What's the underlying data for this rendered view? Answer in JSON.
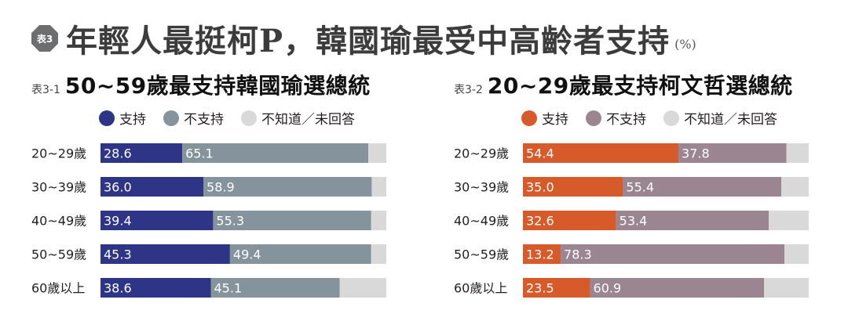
{
  "header": {
    "badge": "表3",
    "title": "年輕人最挺柯P，韓國瑜最受中高齡者支持",
    "unit": "(%)"
  },
  "colors": {
    "neutral": "#d9d9d9",
    "left_support": "#2e3486",
    "left_nonsupport": "#84939c",
    "right_support": "#d65a2a",
    "right_nonsupport": "#9b8590"
  },
  "legend": {
    "support": "支持",
    "nonsupport": "不支持",
    "unknown": "不知道／未回答"
  },
  "panels": [
    {
      "code": "表3-1",
      "title": "50~59歲最支持韓國瑜選總統"
    },
    {
      "code": "表3-2",
      "title": "20~29歲最支持柯文哲選總統"
    }
  ],
  "chart_data": [
    {
      "type": "bar",
      "orientation": "horizontal",
      "stacked": true,
      "title": "50~59歲最支持韓國瑜選總統",
      "categories": [
        "20~29歲",
        "30~39歲",
        "40~49歲",
        "50~59歲",
        "60歲以上"
      ],
      "series": [
        {
          "name": "支持",
          "values": [
            28.6,
            36.0,
            39.4,
            45.3,
            38.6
          ],
          "labels": [
            "28.6",
            "36.0",
            "39.4",
            "45.3",
            "38.6"
          ],
          "color": "#2e3486"
        },
        {
          "name": "不支持",
          "values": [
            65.1,
            58.9,
            55.3,
            49.4,
            45.1
          ],
          "labels": [
            "65.1",
            "58.9",
            "55.3",
            "49.4",
            "45.1"
          ],
          "color": "#84939c"
        },
        {
          "name": "不知道／未回答",
          "values": [
            6.3,
            5.1,
            5.3,
            5.3,
            16.3
          ],
          "color": "#d9d9d9"
        }
      ],
      "xlim": [
        0,
        100
      ]
    },
    {
      "type": "bar",
      "orientation": "horizontal",
      "stacked": true,
      "title": "20~29歲最支持柯文哲選總統",
      "categories": [
        "20~29歲",
        "30~39歲",
        "40~49歲",
        "50~59歲",
        "60歲以上"
      ],
      "series": [
        {
          "name": "支持",
          "values": [
            54.4,
            35.0,
            32.6,
            13.2,
            23.5
          ],
          "labels": [
            "54.4",
            "35.0",
            "32.6",
            "13.2",
            "23.5"
          ],
          "color": "#d65a2a"
        },
        {
          "name": "不支持",
          "values": [
            37.8,
            55.4,
            53.4,
            78.3,
            60.9
          ],
          "labels": [
            "37.8",
            "55.4",
            "53.4",
            "78.3",
            "60.9"
          ],
          "color": "#9b8590"
        },
        {
          "name": "不知道／未回答",
          "values": [
            7.8,
            9.6,
            14.0,
            8.5,
            15.6
          ],
          "color": "#d9d9d9"
        }
      ],
      "xlim": [
        0,
        100
      ]
    }
  ]
}
